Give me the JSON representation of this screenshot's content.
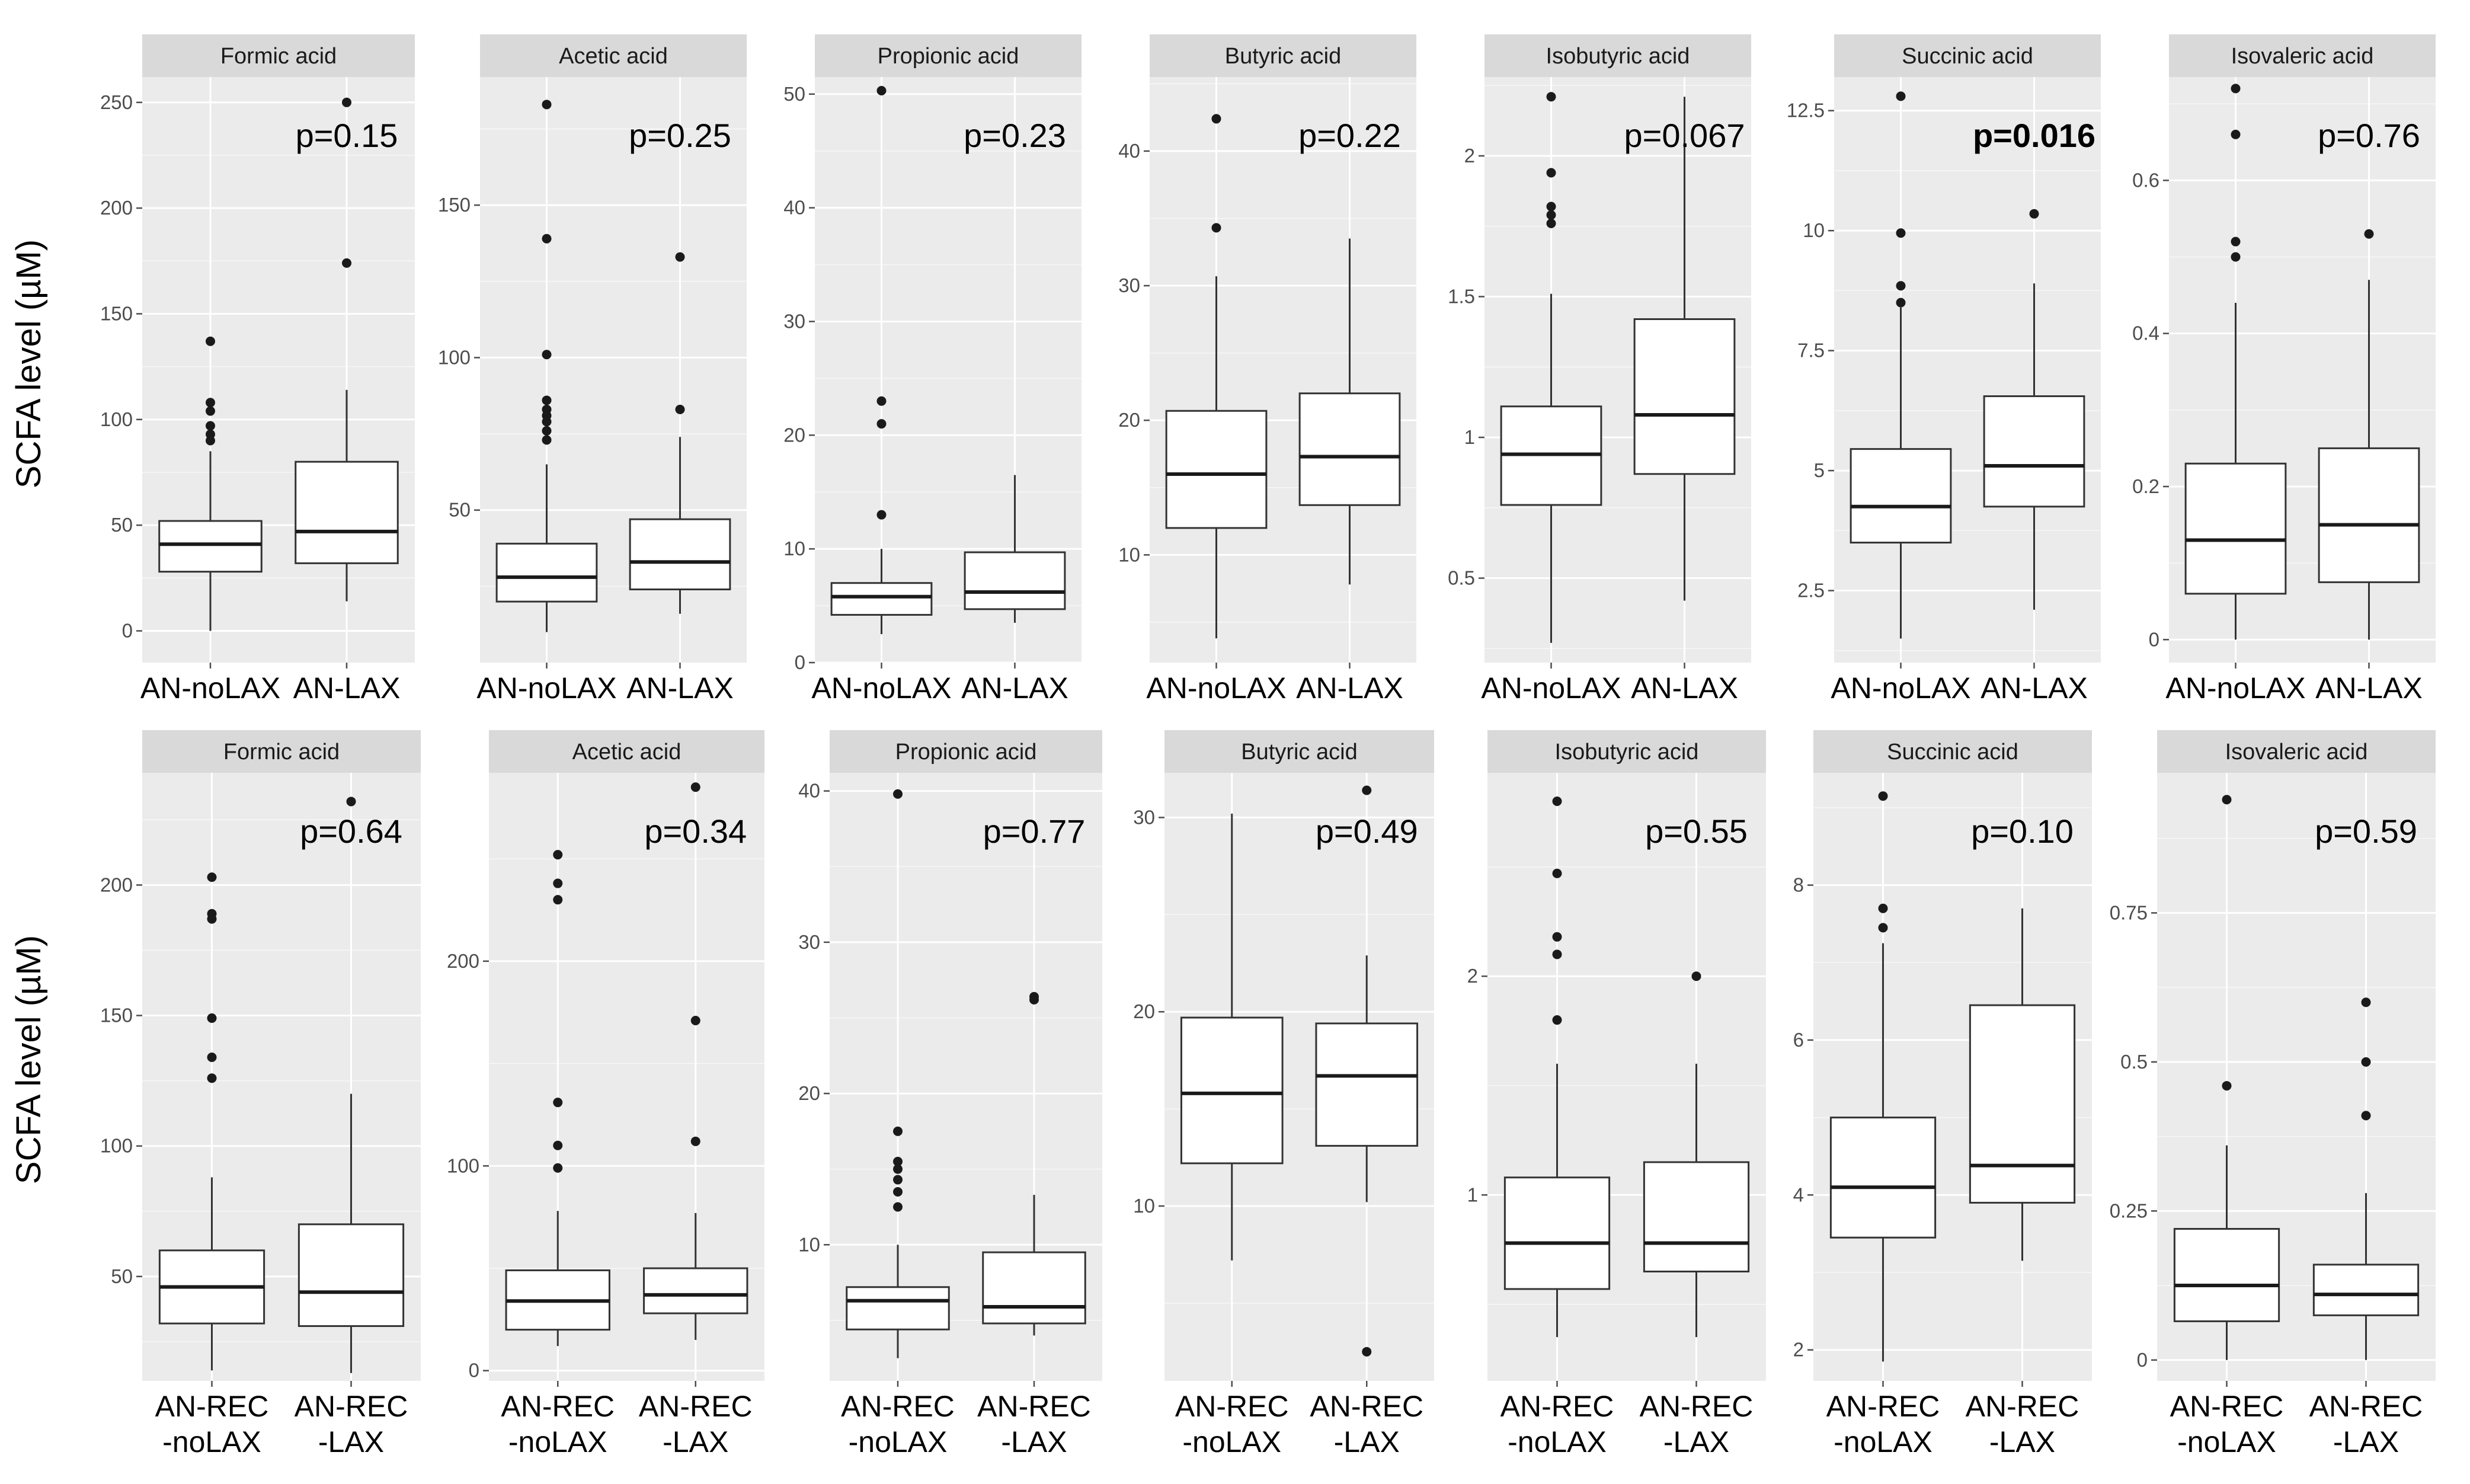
{
  "figure": {
    "ylabel_top": "SCFA level (µM)",
    "ylabel_bottom": "SCFA level (µM)",
    "colors": {
      "panel_bg": "#ebebeb",
      "grid_major": "#ffffff",
      "strip_bg": "#d9d9d9",
      "box_fill": "#ffffff",
      "box_line": "#333333",
      "outlier": "#1a1a1a",
      "tick": "#4d4d4d"
    }
  },
  "chart_data": [
    {
      "type": "box",
      "title": "Formic acid",
      "categories": [
        "AN-noLAX",
        "AN-LAX"
      ],
      "ylim": [
        -15,
        262
      ],
      "yticks": [
        0,
        50,
        100,
        150,
        200,
        250
      ],
      "pvalue": "p=0.15",
      "pvalue_bold": false,
      "ylabel": "SCFA level (µM)",
      "boxes": [
        {
          "low": 0,
          "q1": 28,
          "median": 41,
          "q3": 52,
          "high": 85,
          "outliers": [
            90,
            93,
            97,
            104,
            108,
            137
          ]
        },
        {
          "low": 14,
          "q1": 32,
          "median": 47,
          "q3": 80,
          "high": 114,
          "outliers": [
            174,
            250
          ]
        }
      ]
    },
    {
      "type": "box",
      "title": "Acetic acid",
      "categories": [
        "AN-noLAX",
        "AN-LAX"
      ],
      "ylim": [
        0,
        192
      ],
      "yticks": [
        50,
        100,
        150
      ],
      "pvalue": "p=0.25",
      "pvalue_bold": false,
      "ylabel": "",
      "boxes": [
        {
          "low": 10,
          "q1": 20,
          "median": 28,
          "q3": 39,
          "high": 65,
          "outliers": [
            73,
            76,
            79,
            81,
            83,
            86,
            101,
            139,
            183
          ]
        },
        {
          "low": 16,
          "q1": 24,
          "median": 33,
          "q3": 47,
          "high": 74,
          "outliers": [
            83,
            133
          ]
        }
      ]
    },
    {
      "type": "box",
      "title": "Propionic acid",
      "categories": [
        "AN-noLAX",
        "AN-LAX"
      ],
      "ylim": [
        0,
        51.5
      ],
      "yticks": [
        0,
        10,
        20,
        30,
        40,
        50
      ],
      "pvalue": "p=0.23",
      "pvalue_bold": false,
      "ylabel": "",
      "boxes": [
        {
          "low": 2.5,
          "q1": 4.2,
          "median": 5.8,
          "q3": 7.0,
          "high": 10,
          "outliers": [
            13,
            21,
            23,
            50.3
          ]
        },
        {
          "low": 3.5,
          "q1": 4.7,
          "median": 6.2,
          "q3": 9.7,
          "high": 16.5,
          "outliers": []
        }
      ]
    },
    {
      "type": "box",
      "title": "Butyric acid",
      "categories": [
        "AN-noLAX",
        "AN-LAX"
      ],
      "ylim": [
        2,
        45.5
      ],
      "yticks": [
        10,
        20,
        30,
        40
      ],
      "pvalue": "p=0.22",
      "pvalue_bold": false,
      "ylabel": "",
      "boxes": [
        {
          "low": 3.8,
          "q1": 12,
          "median": 16,
          "q3": 20.7,
          "high": 30.7,
          "outliers": [
            34.3,
            42.4
          ]
        },
        {
          "low": 7.8,
          "q1": 13.7,
          "median": 17.3,
          "q3": 22,
          "high": 33.5,
          "outliers": []
        }
      ]
    },
    {
      "type": "box",
      "title": "Isobutyric acid",
      "categories": [
        "AN-noLAX",
        "AN-LAX"
      ],
      "ylim": [
        0.2,
        2.28
      ],
      "yticks": [
        0.5,
        1.0,
        1.5,
        2.0
      ],
      "pvalue": "p=0.067",
      "pvalue_bold": false,
      "ylabel": "",
      "boxes": [
        {
          "low": 0.27,
          "q1": 0.76,
          "median": 0.94,
          "q3": 1.11,
          "high": 1.51,
          "outliers": [
            1.76,
            1.79,
            1.82,
            1.94,
            2.21
          ]
        },
        {
          "low": 0.42,
          "q1": 0.87,
          "median": 1.08,
          "q3": 1.42,
          "high": 2.21,
          "outliers": []
        }
      ]
    },
    {
      "type": "box",
      "title": "Succinic acid",
      "categories": [
        "AN-noLAX",
        "AN-LAX"
      ],
      "ylim": [
        1,
        13.2
      ],
      "yticks": [
        2.5,
        5.0,
        7.5,
        10.0,
        12.5
      ],
      "pvalue": "p=0.016",
      "pvalue_bold": true,
      "ylabel": "",
      "boxes": [
        {
          "low": 1.5,
          "q1": 3.5,
          "median": 4.25,
          "q3": 5.45,
          "high": 8.4,
          "outliers": [
            8.5,
            8.85,
            9.95,
            12.8
          ]
        },
        {
          "low": 2.1,
          "q1": 4.25,
          "median": 5.1,
          "q3": 6.55,
          "high": 8.9,
          "outliers": [
            10.35
          ]
        }
      ]
    },
    {
      "type": "box",
      "title": "Isovaleric acid",
      "categories": [
        "AN-noLAX",
        "AN-LAX"
      ],
      "ylim": [
        -0.03,
        0.735
      ],
      "yticks": [
        0.0,
        0.2,
        0.4,
        0.6
      ],
      "pvalue": "p=0.76",
      "pvalue_bold": false,
      "ylabel": "",
      "boxes": [
        {
          "low": 0,
          "q1": 0.06,
          "median": 0.13,
          "q3": 0.23,
          "high": 0.44,
          "outliers": [
            0.5,
            0.52,
            0.66,
            0.72
          ]
        },
        {
          "low": 0,
          "q1": 0.075,
          "median": 0.15,
          "q3": 0.25,
          "high": 0.47,
          "outliers": [
            0.53
          ]
        }
      ]
    },
    {
      "type": "box",
      "title": "Formic acid",
      "categories": [
        "AN-REC\n-noLAX",
        "AN-REC\n-LAX"
      ],
      "ylim": [
        10,
        243
      ],
      "yticks": [
        50,
        100,
        150,
        200
      ],
      "pvalue": "p=0.64",
      "pvalue_bold": false,
      "ylabel": "SCFA level (µM)",
      "boxes": [
        {
          "low": 14,
          "q1": 32,
          "median": 46,
          "q3": 60,
          "high": 88,
          "outliers": [
            126,
            134,
            149,
            187,
            189,
            203
          ]
        },
        {
          "low": 13,
          "q1": 31,
          "median": 44,
          "q3": 70,
          "high": 120,
          "outliers": [
            232
          ]
        }
      ]
    },
    {
      "type": "box",
      "title": "Acetic acid",
      "categories": [
        "AN-REC\n-noLAX",
        "AN-REC\n-LAX"
      ],
      "ylim": [
        -5,
        292
      ],
      "yticks": [
        0,
        100,
        200
      ],
      "pvalue": "p=0.34",
      "pvalue_bold": false,
      "ylabel": "",
      "boxes": [
        {
          "low": 12,
          "q1": 20,
          "median": 34,
          "q3": 49,
          "high": 78,
          "outliers": [
            99,
            110,
            131,
            230,
            238,
            252
          ]
        },
        {
          "low": 15,
          "q1": 28,
          "median": 37,
          "q3": 50,
          "high": 77,
          "outliers": [
            112,
            171,
            285
          ]
        }
      ]
    },
    {
      "type": "box",
      "title": "Propionic acid",
      "categories": [
        "AN-REC\n-noLAX",
        "AN-REC\n-LAX"
      ],
      "ylim": [
        1,
        41.2
      ],
      "yticks": [
        10,
        20,
        30,
        40
      ],
      "pvalue": "p=0.77",
      "pvalue_bold": false,
      "ylabel": "",
      "boxes": [
        {
          "low": 2.5,
          "q1": 4.4,
          "median": 6.3,
          "q3": 7.2,
          "high": 10,
          "outliers": [
            12.5,
            13.5,
            14.3,
            15,
            15.5,
            17.5,
            39.8
          ]
        },
        {
          "low": 4,
          "q1": 4.8,
          "median": 5.9,
          "q3": 9.5,
          "high": 13.3,
          "outliers": [
            26.2,
            26.4
          ]
        }
      ]
    },
    {
      "type": "box",
      "title": "Butyric acid",
      "categories": [
        "AN-REC\n-noLAX",
        "AN-REC\n-LAX"
      ],
      "ylim": [
        1,
        32.3
      ],
      "yticks": [
        10,
        20,
        30
      ],
      "pvalue": "p=0.49",
      "pvalue_bold": false,
      "ylabel": "",
      "boxes": [
        {
          "low": 7.2,
          "q1": 12.2,
          "median": 15.8,
          "q3": 19.7,
          "high": 30.2,
          "outliers": []
        },
        {
          "low": 10.2,
          "q1": 13.1,
          "median": 16.7,
          "q3": 19.4,
          "high": 22.9,
          "outliers": [
            2.5,
            31.4
          ]
        }
      ]
    },
    {
      "type": "box",
      "title": "Isobutyric acid",
      "categories": [
        "AN-REC\n-noLAX",
        "AN-REC\n-LAX"
      ],
      "ylim": [
        0.15,
        2.93
      ],
      "yticks": [
        1,
        2
      ],
      "pvalue": "p=0.55",
      "pvalue_bold": false,
      "ylabel": "",
      "boxes": [
        {
          "low": 0.35,
          "q1": 0.57,
          "median": 0.78,
          "q3": 1.08,
          "high": 1.6,
          "outliers": [
            1.8,
            2.1,
            2.18,
            2.47,
            2.8
          ]
        },
        {
          "low": 0.35,
          "q1": 0.65,
          "median": 0.78,
          "q3": 1.15,
          "high": 1.6,
          "outliers": [
            2.0
          ]
        }
      ]
    },
    {
      "type": "box",
      "title": "Succinic acid",
      "categories": [
        "AN-REC\n-noLAX",
        "AN-REC\n-LAX"
      ],
      "ylim": [
        1.6,
        9.45
      ],
      "yticks": [
        2,
        4,
        6,
        8
      ],
      "pvalue": "p=0.10",
      "pvalue_bold": false,
      "ylabel": "",
      "boxes": [
        {
          "low": 1.85,
          "q1": 3.45,
          "median": 4.1,
          "q3": 5.0,
          "high": 7.25,
          "outliers": [
            7.45,
            7.7,
            9.15
          ]
        },
        {
          "low": 3.15,
          "q1": 3.9,
          "median": 4.38,
          "q3": 6.45,
          "high": 7.7,
          "outliers": []
        }
      ]
    },
    {
      "type": "box",
      "title": "Isovaleric acid",
      "categories": [
        "AN-REC\n-noLAX",
        "AN-REC\n-LAX"
      ],
      "ylim": [
        -0.035,
        0.985
      ],
      "yticks": [
        0.0,
        0.25,
        0.5,
        0.75
      ],
      "pvalue": "p=0.59",
      "pvalue_bold": false,
      "ylabel": "",
      "boxes": [
        {
          "low": 0,
          "q1": 0.065,
          "median": 0.125,
          "q3": 0.22,
          "high": 0.36,
          "outliers": [
            0.46,
            0.94
          ]
        },
        {
          "low": 0,
          "q1": 0.075,
          "median": 0.11,
          "q3": 0.16,
          "high": 0.28,
          "outliers": [
            0.41,
            0.5,
            0.6
          ]
        }
      ]
    }
  ]
}
